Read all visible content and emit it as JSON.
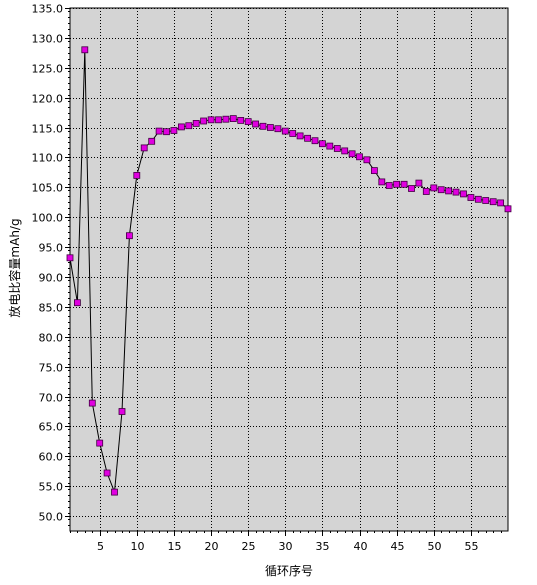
{
  "chart_data": {
    "type": "line",
    "title": "",
    "xlabel": "循环序号",
    "ylabel": "放电比容量mAh/g",
    "xlim": [
      1,
      60
    ],
    "ylim": [
      47.5,
      135
    ],
    "grid": true,
    "x_ticks": [
      "5",
      "10",
      "15",
      "20",
      "25",
      "30",
      "35",
      "40",
      "45",
      "50",
      "55"
    ],
    "y_ticks": [
      "50.0",
      "55.0",
      "60.0",
      "65.0",
      "70.0",
      "75.0",
      "80.0",
      "85.0",
      "90.0",
      "95.0",
      "100.0",
      "105.0",
      "110.0",
      "115.0",
      "120.0",
      "125.0",
      "130.0",
      "135.0"
    ],
    "colors": {
      "plot_bg": "#d4d4d4",
      "marker_fill": "#e000e0",
      "marker_stroke": "#400040",
      "line": "#000000",
      "grid": "#000000"
    },
    "series": [
      {
        "marker": "square",
        "x": [
          1,
          2,
          3,
          4,
          5,
          6,
          7,
          8,
          9,
          10,
          11,
          12,
          13,
          14,
          15,
          16,
          17,
          18,
          19,
          20,
          21,
          22,
          23,
          24,
          25,
          26,
          27,
          28,
          29,
          30,
          31,
          32,
          33,
          34,
          35,
          36,
          37,
          38,
          39,
          40,
          41,
          42,
          43,
          44,
          45,
          46,
          47,
          48,
          49,
          50,
          51,
          52,
          53,
          54,
          55,
          56,
          57,
          58,
          59,
          60
        ],
        "y": [
          93.2,
          85.7,
          128.0,
          68.9,
          62.2,
          57.2,
          54.0,
          67.5,
          96.9,
          107.0,
          111.6,
          112.7,
          114.4,
          114.3,
          114.5,
          115.1,
          115.3,
          115.7,
          116.1,
          116.3,
          116.3,
          116.4,
          116.5,
          116.2,
          116.0,
          115.6,
          115.2,
          115.0,
          114.8,
          114.4,
          114.0,
          113.6,
          113.2,
          112.8,
          112.3,
          111.9,
          111.5,
          111.1,
          110.6,
          110.1,
          109.6,
          107.8,
          105.9,
          105.3,
          105.5,
          105.5,
          104.8,
          105.7,
          104.3,
          104.9,
          104.6,
          104.4,
          104.2,
          103.9,
          103.3,
          103.0,
          102.8,
          102.6,
          102.4,
          101.4
        ]
      }
    ]
  }
}
